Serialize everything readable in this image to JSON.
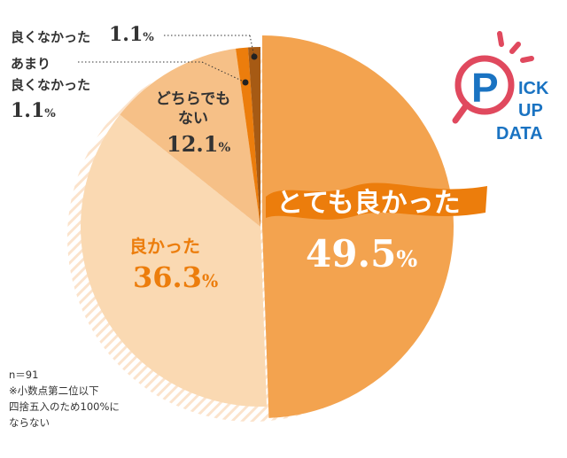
{
  "chart_data": {
    "type": "pie",
    "title": "",
    "slices": [
      {
        "label": "とても良かった",
        "value": 49.5,
        "color": "#f3a34f"
      },
      {
        "label": "良かった",
        "value": 36.3,
        "color": "#fad9b2"
      },
      {
        "label": "どちらでもない",
        "value": 12.1,
        "color": "#f6c087"
      },
      {
        "label": "あまり良くなかった",
        "value": 1.1,
        "color": "#ec7d0c"
      },
      {
        "label": "良くなかった",
        "value": 1.1,
        "color": "#a65a14"
      }
    ],
    "labels": {
      "very_good": {
        "text": "とても良かった",
        "value": "49.5",
        "unit": "%"
      },
      "good": {
        "text": "良かった",
        "value": "36.3",
        "unit": "%"
      },
      "neutral_line1": "どちらでも",
      "neutral_line2": "ない",
      "neutral_value": "12.1",
      "not_very_good_line1": "あまり",
      "not_very_good_line2": "良くなかった",
      "not_very_good_value": "1.1",
      "bad": {
        "text": "良くなかった",
        "value": "1.1"
      },
      "unit": "%"
    },
    "notes": [
      "n＝91",
      "※小数点第二位以下",
      "四捨五入のため100%に",
      "ならない"
    ]
  },
  "logo": {
    "text": "PICK UP DATA"
  }
}
